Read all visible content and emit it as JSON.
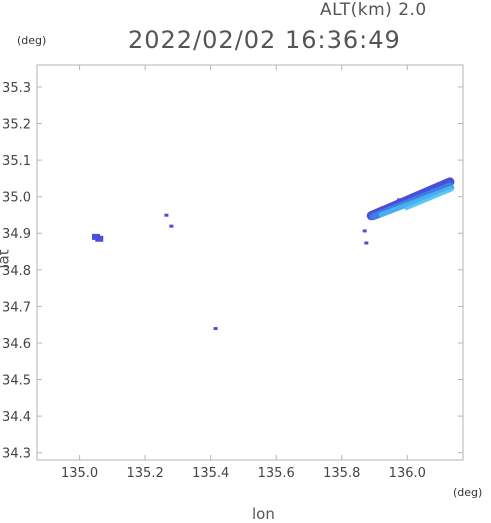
{
  "header": {
    "alt_label": "ALT(km) 2.0",
    "timestamp": "2022/02/02 16:36:49"
  },
  "chart_data": {
    "type": "scatter",
    "title": "2022/02/02 16:36:49",
    "xlabel": "lon",
    "ylabel": "lat",
    "x_unit": "(deg)",
    "y_unit": "(deg)",
    "xlim": [
      134.87,
      136.17
    ],
    "ylim": [
      34.28,
      35.36
    ],
    "x_ticks": [
      135.0,
      135.2,
      135.4,
      135.6,
      135.8,
      136.0
    ],
    "x_tick_labels": [
      "135.0",
      "135.2",
      "135.4",
      "135.6",
      "135.8",
      "136.0"
    ],
    "y_ticks": [
      34.3,
      34.4,
      34.5,
      34.6,
      34.7,
      34.8,
      34.9,
      35.0,
      35.1,
      35.2,
      35.3
    ],
    "y_tick_labels": [
      "34.3",
      "34.4",
      "34.5",
      "34.6",
      "34.7",
      "34.8",
      "34.9",
      "35.0",
      "35.1",
      "35.2",
      "35.3"
    ],
    "grid": false,
    "colors": {
      "echo_dark": "#4a4fd6",
      "echo_mid": "#3f7de6",
      "echo_light": "#47b0f0",
      "echo_cyan": "#5ec8f5"
    },
    "points": [
      {
        "lon": 135.05,
        "lat": 34.89,
        "level": "dark"
      },
      {
        "lon": 135.06,
        "lat": 34.885,
        "level": "dark"
      },
      {
        "lon": 135.265,
        "lat": 34.948,
        "level": "dark"
      },
      {
        "lon": 135.28,
        "lat": 34.918,
        "level": "dark"
      },
      {
        "lon": 135.415,
        "lat": 34.638,
        "level": "dark"
      },
      {
        "lon": 135.87,
        "lat": 34.905,
        "level": "dark"
      },
      {
        "lon": 135.875,
        "lat": 34.872,
        "level": "dark"
      },
      {
        "lon": 135.975,
        "lat": 34.99,
        "level": "dark"
      }
    ],
    "band": {
      "lon_start": 135.89,
      "lat_start": 34.948,
      "lon_end": 136.13,
      "lat_end": 35.035
    }
  }
}
